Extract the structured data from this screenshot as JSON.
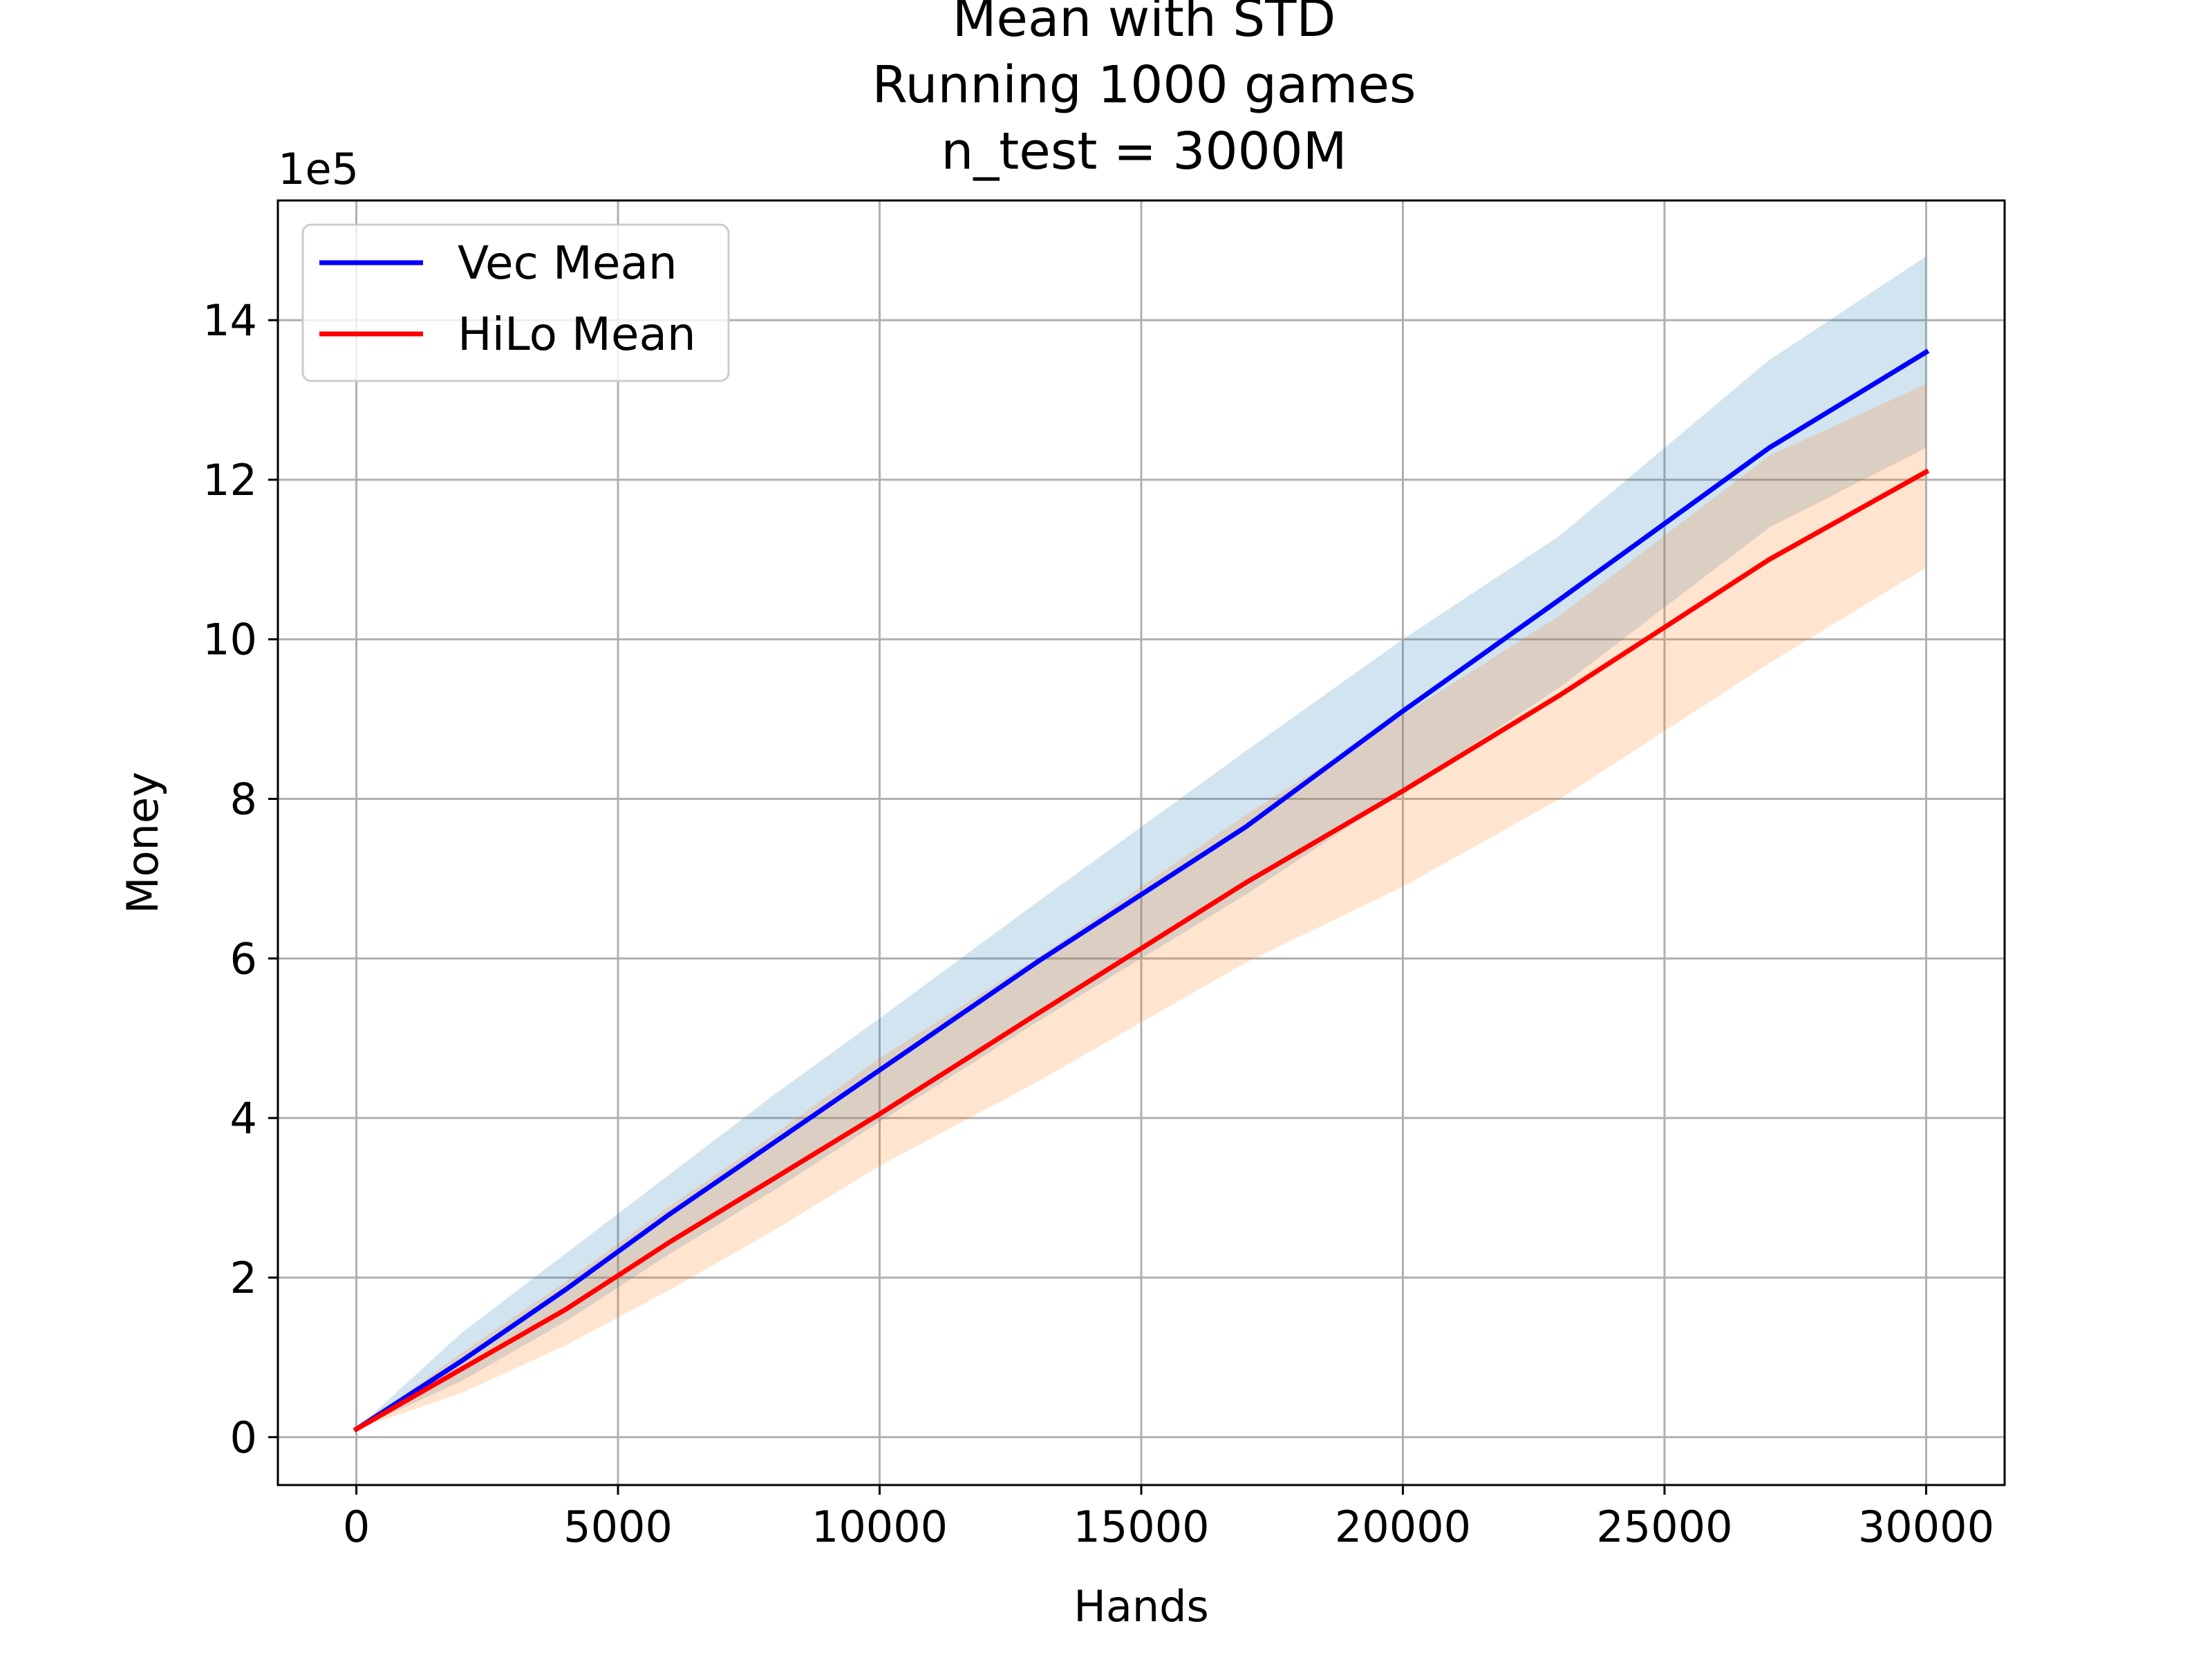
{
  "chart_data": {
    "type": "line",
    "title_lines": [
      "Mean with STD",
      "Running 1000 games",
      "n_test = 3000M"
    ],
    "xlabel": "Hands",
    "ylabel": "Money",
    "y_offset_label": "1e5",
    "xlim": [
      -1500,
      31500
    ],
    "ylim": [
      -0.6,
      15.5
    ],
    "x_ticks": [
      0,
      5000,
      10000,
      15000,
      20000,
      25000,
      30000
    ],
    "x_tick_labels": [
      "0",
      "5000",
      "10000",
      "15000",
      "20000",
      "25000",
      "30000"
    ],
    "y_ticks": [
      0,
      2,
      4,
      6,
      8,
      10,
      12,
      14
    ],
    "y_tick_labels": [
      "0",
      "2",
      "4",
      "6",
      "8",
      "10",
      "12",
      "14"
    ],
    "grid": true,
    "legend_position": "upper left",
    "x": [
      0,
      2000,
      4000,
      6000,
      8000,
      10000,
      13000,
      17000,
      20000,
      23000,
      27000,
      30000
    ],
    "series": [
      {
        "name": "Vec Mean",
        "color": "#0000ff",
        "band_color": "#1f77b4",
        "mean": [
          0.1,
          0.95,
          1.85,
          2.8,
          3.7,
          4.6,
          5.95,
          7.65,
          9.1,
          10.5,
          12.4,
          13.6
        ],
        "upper": [
          0.1,
          1.3,
          2.3,
          3.3,
          4.3,
          5.25,
          6.7,
          8.6,
          10.0,
          11.3,
          13.5,
          14.8
        ],
        "lower": [
          0.1,
          0.7,
          1.45,
          2.3,
          3.1,
          3.95,
          5.2,
          6.8,
          8.1,
          9.4,
          11.4,
          12.4
        ]
      },
      {
        "name": "HiLo Mean",
        "color": "#ff0000",
        "band_color": "#ff7f0e",
        "mean": [
          0.1,
          0.85,
          1.6,
          2.45,
          3.25,
          4.05,
          5.3,
          6.95,
          8.1,
          9.3,
          11.0,
          12.1
        ],
        "upper": [
          0.1,
          1.05,
          1.95,
          2.9,
          3.8,
          4.75,
          6.0,
          7.8,
          9.05,
          10.3,
          12.3,
          13.2
        ],
        "lower": [
          0.1,
          0.55,
          1.15,
          1.85,
          2.6,
          3.4,
          4.45,
          5.95,
          6.9,
          8.0,
          9.7,
          10.9
        ]
      }
    ]
  }
}
